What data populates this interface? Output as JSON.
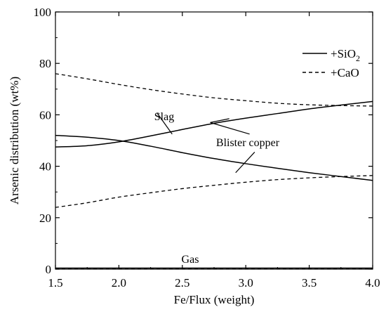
{
  "chart_data": {
    "type": "line",
    "xlabel": "Fe/Flux (weight)",
    "ylabel": "Arsenic distribution (wt%)",
    "xlim": [
      1.5,
      4.0
    ],
    "ylim": [
      0,
      100
    ],
    "x_ticks": [
      "1.5",
      "2.0",
      "2.5",
      "3.0",
      "3.5",
      "4.0"
    ],
    "y_ticks": [
      "0",
      "20",
      "40",
      "60",
      "80",
      "100"
    ],
    "grid": false,
    "legend_position": "top-right",
    "legend": [
      {
        "label": "+SiO",
        "subscript": "2",
        "style": "solid"
      },
      {
        "label": "+CaO",
        "subscript": "",
        "style": "dashed"
      }
    ],
    "series": [
      {
        "legend": "+SiO2",
        "phase": "Slag",
        "style": "solid",
        "x": [
          1.5,
          1.75,
          2.0,
          2.25,
          2.5,
          2.75,
          3.0,
          3.25,
          3.5,
          3.75,
          4.0
        ],
        "y": [
          47.5,
          48.0,
          49.5,
          51.8,
          54.3,
          56.7,
          58.7,
          60.5,
          62.3,
          63.8,
          65.2
        ]
      },
      {
        "legend": "+SiO2",
        "phase": "Blister copper",
        "style": "solid",
        "x": [
          1.5,
          1.75,
          2.0,
          2.25,
          2.5,
          2.75,
          3.0,
          3.25,
          3.5,
          3.75,
          4.0
        ],
        "y": [
          52.0,
          51.3,
          50.0,
          47.8,
          45.3,
          43.0,
          41.0,
          39.2,
          37.5,
          36.0,
          34.5
        ]
      },
      {
        "legend": "+SiO2",
        "phase": "Gas",
        "style": "solid",
        "x": [
          1.5,
          4.0
        ],
        "y": [
          0.4,
          0.4
        ]
      },
      {
        "legend": "+CaO",
        "phase": "Slag",
        "style": "dashed",
        "x": [
          1.5,
          1.75,
          2.0,
          2.25,
          2.5,
          2.75,
          3.0,
          3.25,
          3.5,
          3.75,
          4.0
        ],
        "y": [
          76.0,
          74.0,
          71.8,
          69.8,
          68.1,
          66.6,
          65.5,
          64.5,
          63.9,
          63.6,
          63.4
        ]
      },
      {
        "legend": "+CaO",
        "phase": "Blister copper",
        "style": "dashed",
        "x": [
          1.5,
          1.75,
          2.0,
          2.25,
          2.5,
          2.75,
          3.0,
          3.25,
          3.5,
          3.75,
          4.0
        ],
        "y": [
          24.0,
          25.8,
          28.0,
          29.7,
          31.3,
          32.6,
          33.8,
          34.8,
          35.5,
          36.0,
          36.4
        ]
      },
      {
        "legend": "+CaO",
        "phase": "Gas",
        "style": "dashed",
        "x": [
          1.5,
          4.0
        ],
        "y": [
          0.2,
          0.2
        ]
      }
    ],
    "annotations": [
      {
        "text": "Slag",
        "at": [
          2.22,
          63.5
        ],
        "pointer": [
          [
            2.3,
            60.8
          ],
          [
            2.42,
            52.5
          ]
        ]
      },
      {
        "text": "Blister copper",
        "at": [
          3.08,
          49.5
        ],
        "pointer_up": [
          [
            2.87,
            58.5
          ],
          [
            2.72,
            57.0
          ],
          [
            3.03,
            52.5
          ]
        ],
        "pointer_down": [
          [
            3.07,
            45.5
          ],
          [
            2.92,
            37.5
          ]
        ]
      },
      {
        "text": "Gas",
        "at": [
          2.75,
          3.5
        ]
      }
    ]
  }
}
